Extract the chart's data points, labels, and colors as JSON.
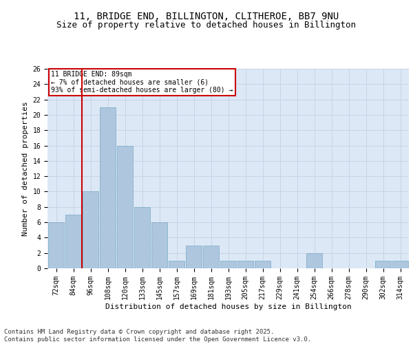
{
  "title_line1": "11, BRIDGE END, BILLINGTON, CLITHEROE, BB7 9NU",
  "title_line2": "Size of property relative to detached houses in Billington",
  "xlabel": "Distribution of detached houses by size in Billington",
  "ylabel": "Number of detached properties",
  "categories": [
    "72sqm",
    "84sqm",
    "96sqm",
    "108sqm",
    "120sqm",
    "133sqm",
    "145sqm",
    "157sqm",
    "169sqm",
    "181sqm",
    "193sqm",
    "205sqm",
    "217sqm",
    "229sqm",
    "241sqm",
    "254sqm",
    "266sqm",
    "278sqm",
    "290sqm",
    "302sqm",
    "314sqm"
  ],
  "values": [
    6,
    7,
    10,
    21,
    16,
    8,
    6,
    1,
    3,
    3,
    1,
    1,
    1,
    0,
    0,
    2,
    0,
    0,
    0,
    1,
    1
  ],
  "bar_color": "#aec6de",
  "bar_edge_color": "#7aaac8",
  "grid_color": "#c8d4e8",
  "background_color": "#dce8f5",
  "vline_color": "#cc0000",
  "annotation_box_text": "11 BRIDGE END: 89sqm\n← 7% of detached houses are smaller (6)\n93% of semi-detached houses are larger (80) →",
  "annotation_box_color": "#cc0000",
  "ylim": [
    0,
    26
  ],
  "yticks": [
    0,
    2,
    4,
    6,
    8,
    10,
    12,
    14,
    16,
    18,
    20,
    22,
    24,
    26
  ],
  "footer_line1": "Contains HM Land Registry data © Crown copyright and database right 2025.",
  "footer_line2": "Contains public sector information licensed under the Open Government Licence v3.0.",
  "title_fontsize": 10,
  "subtitle_fontsize": 9,
  "axis_fontsize": 8,
  "tick_fontsize": 7,
  "footer_fontsize": 6.5
}
